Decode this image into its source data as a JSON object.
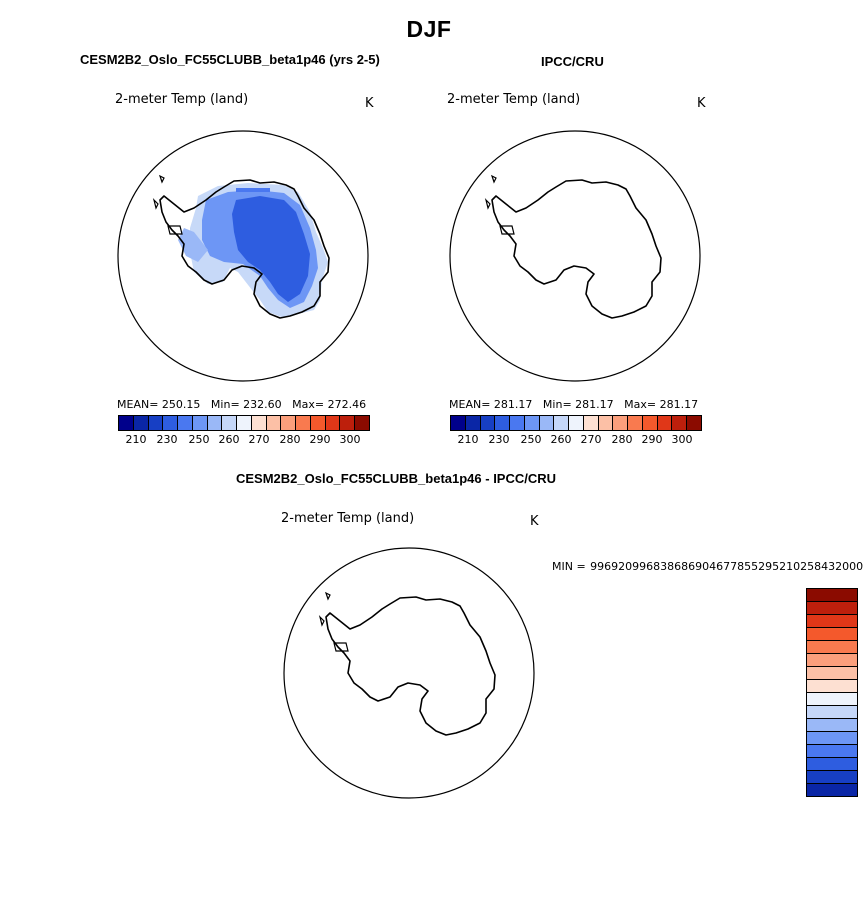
{
  "figure": {
    "title": "DJF",
    "colors": [
      "#00008b",
      "#0a26a6",
      "#173fc4",
      "#2e5de0",
      "#4a78f0",
      "#6d96f5",
      "#9ab8f7",
      "#c5d7f9",
      "#eef3fc",
      "#fde0d2",
      "#fcc0a6",
      "#fb9f7c",
      "#f97a4f",
      "#f4592c",
      "#e03718",
      "#bd1f0c",
      "#8b0b00"
    ],
    "land_shades": [
      "#c7d9f8",
      "#9ab8f7",
      "#6d96f5",
      "#4a78f0",
      "#2e5de0"
    ]
  },
  "panels": {
    "model": {
      "title": "CESM2B2_Oslo_FC55CLUBB_beta1p46 (yrs 2-5)",
      "var_label": "2-meter Temp (land)",
      "unit": "K",
      "mean_label": "MEAN=",
      "mean": "250.15",
      "min_label": "Min=",
      "min": "232.60",
      "max_label": "Max=",
      "max": "272.46",
      "ticks": [
        "210",
        "230",
        "250",
        "260",
        "270",
        "280",
        "290",
        "300"
      ]
    },
    "obs": {
      "title": "IPCC/CRU",
      "var_label": "2-meter Temp (land)",
      "unit": "K",
      "mean_label": "MEAN=",
      "mean": "281.17",
      "min_label": "Min=",
      "min": "281.17",
      "max_label": "Max=",
      "max": "281.17",
      "ticks": [
        "210",
        "230",
        "250",
        "260",
        "270",
        "280",
        "290",
        "300"
      ]
    },
    "diff": {
      "title": "CESM2B2_Oslo_FC55CLUBB_beta1p46 - IPCC/CRU",
      "var_label": "2-meter Temp (land)",
      "unit": "K",
      "min_label": "MIN =",
      "min": "996920996838686904677855295210258432000"
    }
  }
}
